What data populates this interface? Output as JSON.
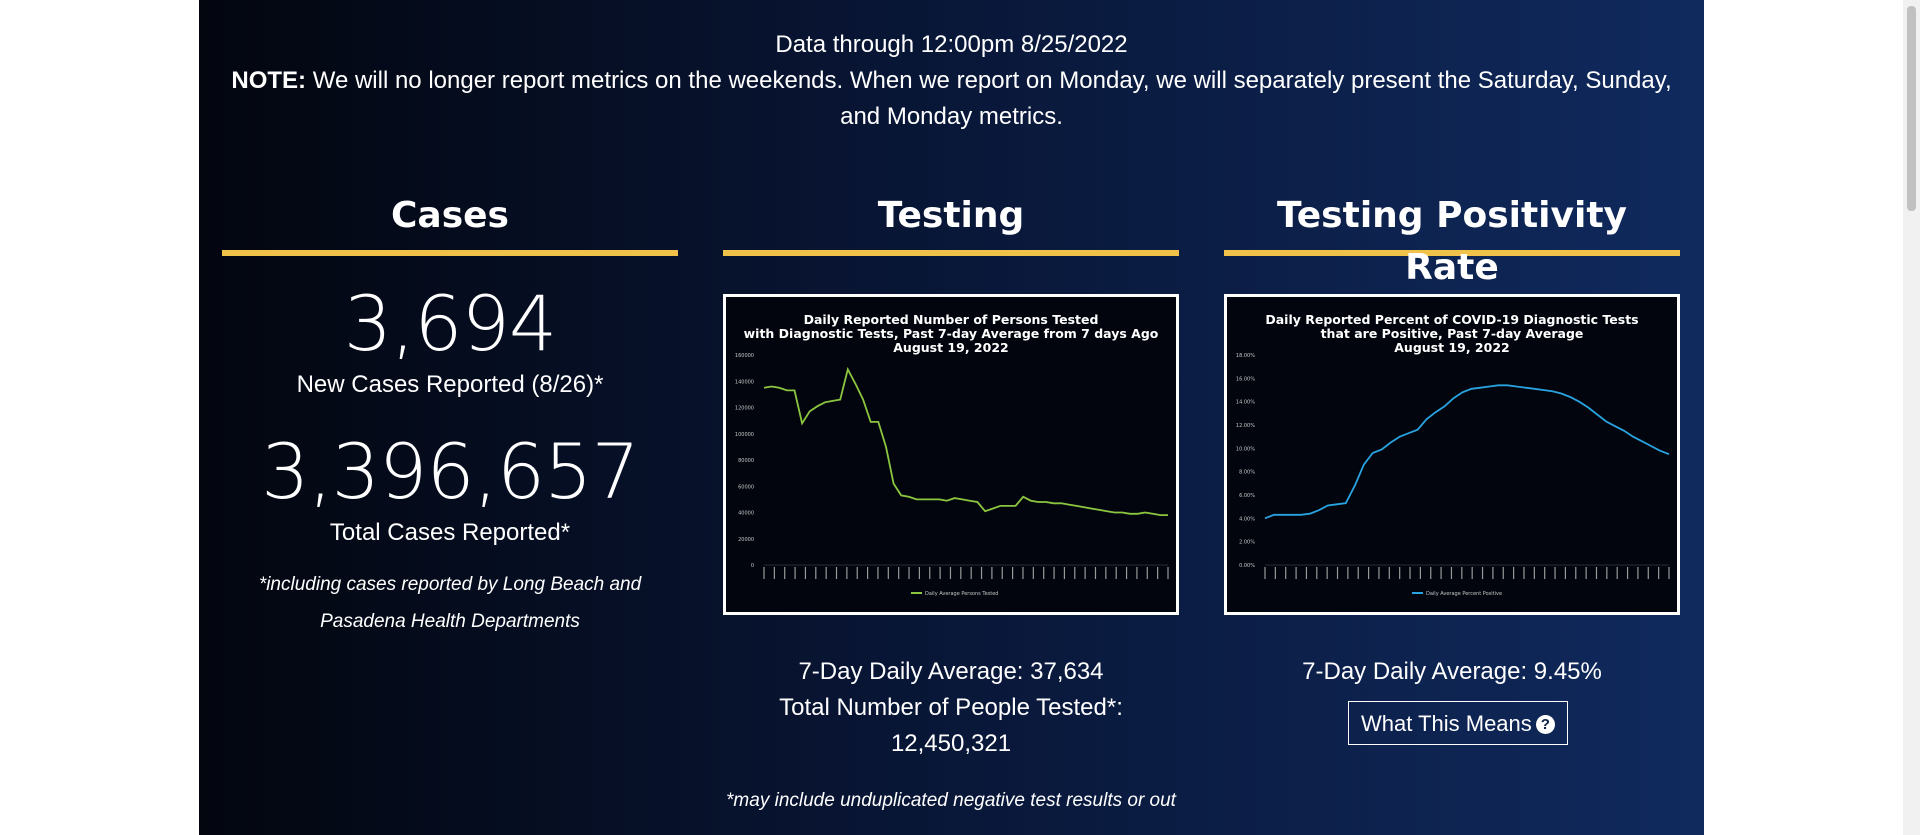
{
  "header": {
    "data_through": "Data through 12:00pm 8/25/2022",
    "note_label": "NOTE:",
    "note_text": "We will no longer report metrics on the weekends. When we report on Monday, we will separately present the Saturday, Sunday, and Monday metrics."
  },
  "cases": {
    "title": "Cases",
    "new_value": "3,694",
    "new_label": "New Cases Reported (8/26)*",
    "total_value": "3,396,657",
    "total_label": "Total Cases Reported*",
    "footnote": "*including cases reported by Long Beach and Pasadena Health Departments"
  },
  "testing": {
    "title": "Testing",
    "avg_label": "7-Day Daily Average: 37,634",
    "total_label": "Total Number of People Tested*:",
    "total_value": "12,450,321",
    "footnote": "*may include unduplicated negative test results or out"
  },
  "positivity": {
    "title": "Testing Positivity Rate",
    "avg_label": "7-Day Daily Average: 9.45%",
    "button_label": "What This Means",
    "button_icon": "question-circle-icon"
  },
  "colors": {
    "accent": "#f1c24a",
    "testing_line": "#8cc63f",
    "positivity_line": "#29a3e0"
  },
  "chart_data": [
    {
      "type": "line",
      "title": "Daily Reported Number of Persons Tested with Diagnostic Tests, Past 7-day Average from 7 days Ago August 19, 2022",
      "title_lines": [
        "Daily Reported Number of Persons Tested",
        "with Diagnostic Tests, Past 7-day Average from 7 days Ago",
        "August 19, 2022"
      ],
      "ylim": [
        0,
        160000
      ],
      "yticks": [
        "160000",
        "140000",
        "120000",
        "100000",
        "80000",
        "60000",
        "40000",
        "20000",
        "0"
      ],
      "series": [
        {
          "name": "Daily Average Persons Tested",
          "values": [
            135000,
            136000,
            135000,
            133000,
            133000,
            108000,
            117000,
            121000,
            124000,
            125000,
            126000,
            149000,
            138000,
            126000,
            109000,
            109000,
            90000,
            62000,
            53000,
            52000,
            50000,
            50000,
            50000,
            50000,
            49000,
            51000,
            50000,
            49000,
            48000,
            41000,
            43000,
            45000,
            45000,
            45000,
            52000,
            49000,
            48000,
            48000,
            47000,
            47000,
            46000,
            45000,
            44000,
            43000,
            42000,
            41000,
            40000,
            40000,
            39000,
            39000,
            40000,
            39000,
            38000,
            38000
          ]
        }
      ]
    },
    {
      "type": "line",
      "title": "Daily Reported Percent of COVID-19 Diagnostic Tests that are Positive, Past 7-day Average August 19, 2022",
      "title_lines": [
        "Daily Reported Percent of COVID-19 Diagnostic Tests",
        "that are Positive, Past 7-day Average",
        "August 19, 2022"
      ],
      "ylim": [
        0,
        18
      ],
      "yticks": [
        "18.00%",
        "16.00%",
        "14.00%",
        "12.00%",
        "10.00%",
        "8.00%",
        "6.00%",
        "4.00%",
        "2.00%",
        "0.00%"
      ],
      "series": [
        {
          "name": "Daily Average Percent Positive",
          "values": [
            4.0,
            4.3,
            4.3,
            4.3,
            4.3,
            4.4,
            4.7,
            5.1,
            5.2,
            5.3,
            6.8,
            8.6,
            9.6,
            9.9,
            10.5,
            11.0,
            11.3,
            11.6,
            12.5,
            13.1,
            13.6,
            14.3,
            14.8,
            15.1,
            15.2,
            15.3,
            15.4,
            15.4,
            15.3,
            15.2,
            15.1,
            15.0,
            14.9,
            14.7,
            14.4,
            14.0,
            13.5,
            12.9,
            12.3,
            11.9,
            11.5,
            11.0,
            10.6,
            10.2,
            9.8,
            9.5
          ]
        }
      ]
    }
  ]
}
